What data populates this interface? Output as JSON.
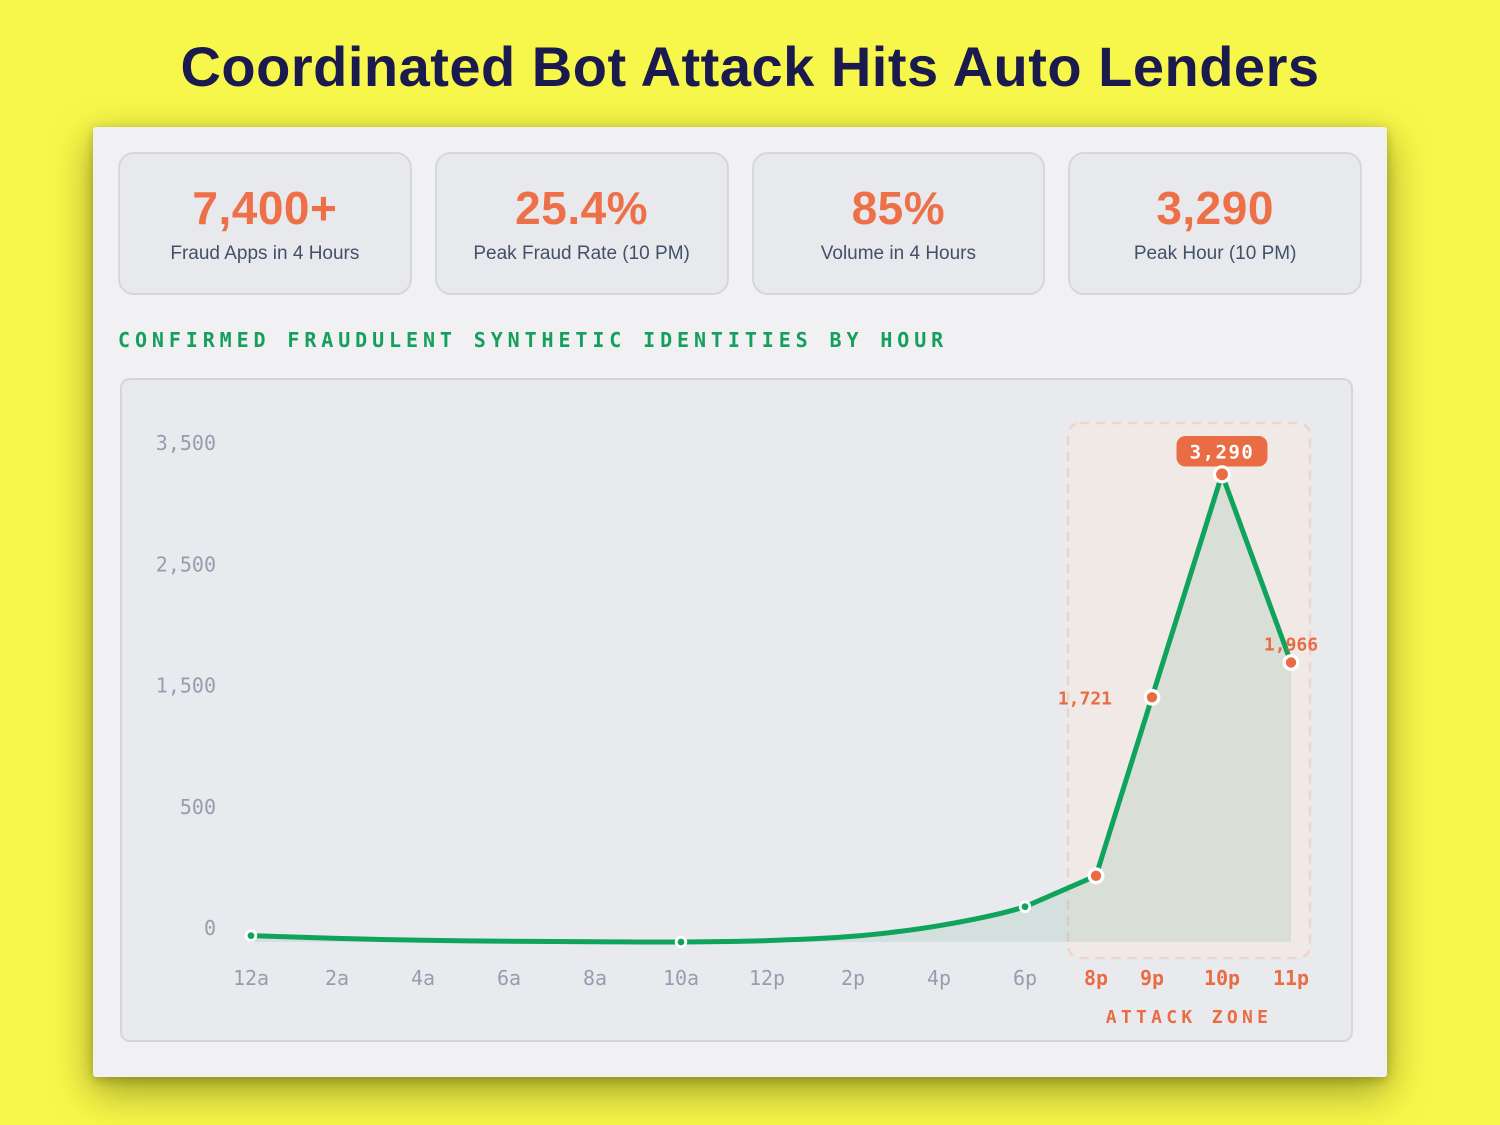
{
  "page": {
    "title": "Coordinated Bot Attack Hits Auto Lenders"
  },
  "stats": [
    {
      "value": "7,400+",
      "label": "Fraud Apps in 4 Hours"
    },
    {
      "value": "25.4%",
      "label": "Peak Fraud Rate (10 PM)"
    },
    {
      "value": "85%",
      "label": "Volume in 4 Hours"
    },
    {
      "value": "3,290",
      "label": "Peak Hour (10 PM)"
    }
  ],
  "section_heading": "CONFIRMED FRAUDULENT SYNTHETIC IDENTITIES BY HOUR",
  "chart_data": {
    "type": "line",
    "title": "CONFIRMED FRAUDULENT SYNTHETIC IDENTITIES BY HOUR",
    "categories": [
      "12a",
      "2a",
      "4a",
      "6a",
      "8a",
      "10a",
      "12p",
      "2p",
      "4p",
      "6p",
      "8p",
      "9p",
      "10p",
      "11p"
    ],
    "values": [
      45,
      25,
      12,
      5,
      2,
      0,
      10,
      40,
      115,
      248,
      466,
      1721,
      3290,
      1966
    ],
    "xlabel": "",
    "ylabel": "",
    "ylim": [
      0,
      3500
    ],
    "yticks": [
      "0",
      "500",
      "1,500",
      "2,500",
      "3,500"
    ],
    "grid": false,
    "legend": false,
    "dots": [
      "12a",
      "10a",
      "6p",
      "8p",
      "9p",
      "10p",
      "11p"
    ],
    "point_labels": [
      {
        "category": "9p",
        "text": "1,721",
        "placement": "left"
      },
      {
        "category": "10p",
        "text": "3,290",
        "placement": "badge"
      },
      {
        "category": "11p",
        "text": "1,966",
        "placement": "top"
      }
    ],
    "attack_zone": {
      "label": "ATTACK ZONE",
      "categories": [
        "8p",
        "9p",
        "10p",
        "11p"
      ]
    }
  },
  "colors": {
    "page_background": "#f7f64a",
    "title_navy": "#1a1a4e",
    "accent_orange": "#ea6c45",
    "stat_number_orange": "#ee7048",
    "stat_label_slate": "#43506a",
    "heading_green": "#14a05c",
    "line_green": "#10a35c",
    "axis_gray": "#959daf",
    "area_fill": "rgba(16,140,85,0.10)",
    "attack_zone_fill": "#f0e9e6",
    "attack_zone_border": "#eed5c9",
    "panel_background": "#e9eaed",
    "card_background": "#f1f1f4"
  }
}
